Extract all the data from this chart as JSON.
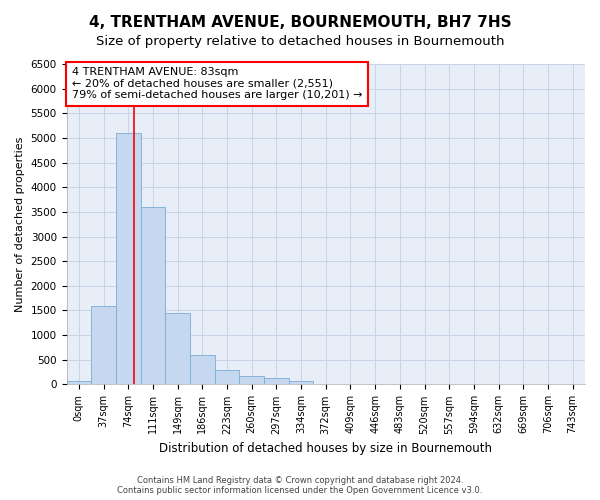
{
  "title": "4, TRENTHAM AVENUE, BOURNEMOUTH, BH7 7HS",
  "subtitle": "Size of property relative to detached houses in Bournemouth",
  "xlabel": "Distribution of detached houses by size in Bournemouth",
  "ylabel": "Number of detached properties",
  "footer_line1": "Contains HM Land Registry data © Crown copyright and database right 2024.",
  "footer_line2": "Contains public sector information licensed under the Open Government Licence v3.0.",
  "bar_labels": [
    "0sqm",
    "37sqm",
    "74sqm",
    "111sqm",
    "149sqm",
    "186sqm",
    "223sqm",
    "260sqm",
    "297sqm",
    "334sqm",
    "372sqm",
    "409sqm",
    "446sqm",
    "483sqm",
    "520sqm",
    "557sqm",
    "594sqm",
    "632sqm",
    "669sqm",
    "706sqm",
    "743sqm"
  ],
  "bar_values": [
    60,
    1600,
    5100,
    3600,
    1450,
    600,
    300,
    175,
    130,
    80,
    0,
    0,
    0,
    0,
    0,
    0,
    0,
    0,
    0,
    0,
    0
  ],
  "bar_color": "#c5d8f0",
  "bar_edge_color": "#7aadd4",
  "ylim": [
    0,
    6500
  ],
  "yticks": [
    0,
    500,
    1000,
    1500,
    2000,
    2500,
    3000,
    3500,
    4000,
    4500,
    5000,
    5500,
    6000,
    6500
  ],
  "property_line_x": 2.25,
  "annotation_title": "4 TRENTHAM AVENUE: 83sqm",
  "annotation_line1": "← 20% of detached houses are smaller (2,551)",
  "annotation_line2": "79% of semi-detached houses are larger (10,201) →",
  "grid_color": "#c8d4e8",
  "bg_color": "#e8eef8",
  "title_fontsize": 11,
  "subtitle_fontsize": 9.5
}
